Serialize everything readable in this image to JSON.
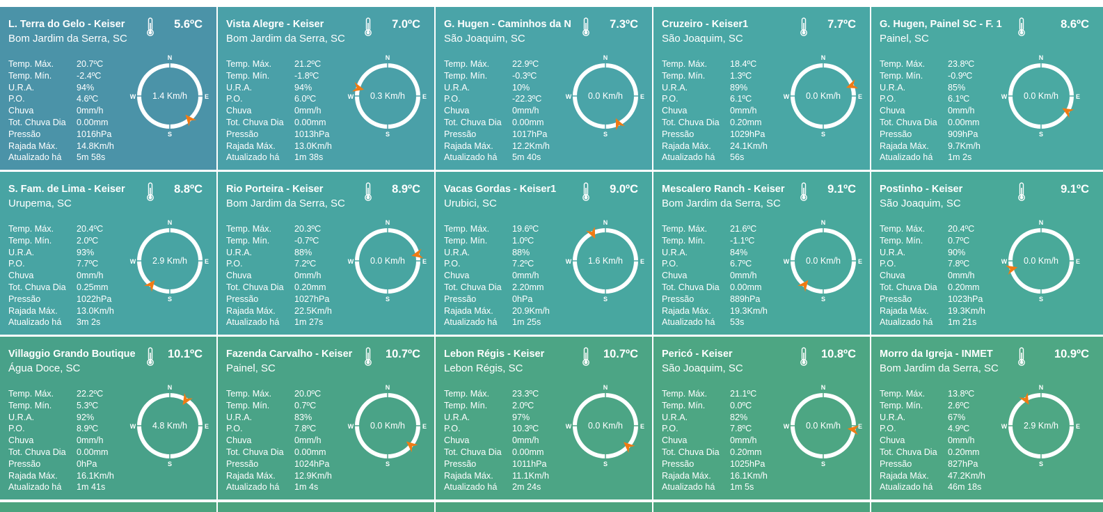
{
  "colors": {
    "rows": [
      [
        "#4b93a8",
        "#4aa0a8",
        "#4aa4a8",
        "#49a7a5",
        "#4aa9a2"
      ],
      [
        "#48a4a3",
        "#48a5a1",
        "#48a7a0",
        "#48a89c",
        "#49a999"
      ],
      [
        "#48a189",
        "#4aa387",
        "#4ca585",
        "#4da683",
        "#4ea784"
      ]
    ],
    "arrow": "#f07b14",
    "ring": "#ffffff"
  },
  "labels": {
    "temp_max": "Temp. Máx.",
    "temp_min": "Temp. Mín.",
    "ura": "U.R.A.",
    "po": "P.O.",
    "chuva": "Chuva",
    "tot_chuva": "Tot. Chuva Dia",
    "pressao": "Pressão",
    "rajada": "Rajada Máx.",
    "atualizado": "Atualizado há",
    "n": "N",
    "s": "S",
    "e": "E",
    "w": "W"
  },
  "stations": [
    {
      "name": "L. Terra do Gelo - Keiser",
      "location": "Bom Jardim da Serra, SC",
      "temp": "5.6ºC",
      "temp_max": "20.7ºC",
      "temp_min": "-2.4ºC",
      "ura": "94%",
      "po": "4.6ºC",
      "chuva": "0mm/h",
      "tot_chuva": "0.00mm",
      "pressao": "1016hPa",
      "rajada": "14.8Km/h",
      "atualizado": "5m 58s",
      "wind_speed": "1.4 Km/h",
      "wind_dir_deg": 140
    },
    {
      "name": "Vista Alegre - Keiser",
      "location": "Bom Jardim da Serra, SC",
      "temp": "7.0ºC",
      "temp_max": "21.2ºC",
      "temp_min": "-1.8ºC",
      "ura": "94%",
      "po": "6.0ºC",
      "chuva": "0mm/h",
      "tot_chuva": "0.00mm",
      "pressao": "1013hPa",
      "rajada": "13.0Km/h",
      "atualizado": "1m 38s",
      "wind_speed": "0.3 Km/h",
      "wind_dir_deg": 285
    },
    {
      "name": "G. Hugen - Caminhos da N",
      "location": "São Joaquim, SC",
      "temp": "7.3ºC",
      "temp_max": "22.9ºC",
      "temp_min": "-0.3ºC",
      "ura": "10%",
      "po": "-22.3ºC",
      "chuva": "0mm/h",
      "tot_chuva": "0.00mm",
      "pressao": "1017hPa",
      "rajada": "12.2Km/h",
      "atualizado": "5m 40s",
      "wind_speed": "0.0 Km/h",
      "wind_dir_deg": 155
    },
    {
      "name": "Cruzeiro - Keiser1",
      "location": "São Joaquim, SC",
      "temp": "7.7ºC",
      "temp_max": "18.4ºC",
      "temp_min": "1.3ºC",
      "ura": "89%",
      "po": "6.1ºC",
      "chuva": "0mm/h",
      "tot_chuva": "0.20mm",
      "pressao": "1029hPa",
      "rajada": "24.1Km/h",
      "atualizado": "56s",
      "wind_speed": "0.0 Km/h",
      "wind_dir_deg": 70
    },
    {
      "name": "G. Hugen, Painel SC - F. 1",
      "location": "Painel, SC",
      "temp": "8.6ºC",
      "temp_max": "23.8ºC",
      "temp_min": "-0.9ºC",
      "ura": "85%",
      "po": "6.1ºC",
      "chuva": "0mm/h",
      "tot_chuva": "0.00mm",
      "pressao": "909hPa",
      "rajada": "9.7Km/h",
      "atualizado": "1m 2s",
      "wind_speed": "0.0 Km/h",
      "wind_dir_deg": 120
    },
    {
      "name": "S. Fam. de Lima - Keiser",
      "location": "Urupema, SC",
      "temp": "8.8ºC",
      "temp_max": "20.4ºC",
      "temp_min": "2.0ºC",
      "ura": "93%",
      "po": "7.7ºC",
      "chuva": "0mm/h",
      "tot_chuva": "0.25mm",
      "pressao": "1022hPa",
      "rajada": "13.0Km/h",
      "atualizado": "3m 2s",
      "wind_speed": "2.9 Km/h",
      "wind_dir_deg": 218
    },
    {
      "name": "Rio Porteira - Keiser",
      "location": "Bom Jardim da Serra, SC",
      "temp": "8.9ºC",
      "temp_max": "20.3ºC",
      "temp_min": "-0.7ºC",
      "ura": "88%",
      "po": "7.2ºC",
      "chuva": "0mm/h",
      "tot_chuva": "0.20mm",
      "pressao": "1027hPa",
      "rajada": "22.5Km/h",
      "atualizado": "1m 27s",
      "wind_speed": "0.0 Km/h",
      "wind_dir_deg": 78
    },
    {
      "name": "Vacas Gordas - Keiser1",
      "location": "Urubici, SC",
      "temp": "9.0ºC",
      "temp_max": "19.6ºC",
      "temp_min": "1.0ºC",
      "ura": "88%",
      "po": "7.2ºC",
      "chuva": "0mm/h",
      "tot_chuva": "2.20mm",
      "pressao": "0hPa",
      "rajada": "20.9Km/h",
      "atualizado": "1m 25s",
      "wind_speed": "1.6 Km/h",
      "wind_dir_deg": 335
    },
    {
      "name": "Mescalero Ranch - Keiser",
      "location": "Bom Jardim da Serra, SC",
      "temp": "9.1ºC",
      "temp_max": "21.6ºC",
      "temp_min": "-1.1ºC",
      "ura": "84%",
      "po": "6.7ºC",
      "chuva": "0mm/h",
      "tot_chuva": "0.00mm",
      "pressao": "889hPa",
      "rajada": "19.3Km/h",
      "atualizado": "53s",
      "wind_speed": "0.0 Km/h",
      "wind_dir_deg": 218
    },
    {
      "name": "Postinho - Keiser",
      "location": "São Joaquim, SC",
      "temp": "9.1ºC",
      "temp_max": "20.4ºC",
      "temp_min": "0.7ºC",
      "ura": "90%",
      "po": "7.8ºC",
      "chuva": "0mm/h",
      "tot_chuva": "0.20mm",
      "pressao": "1023hPa",
      "rajada": "19.3Km/h",
      "atualizado": "1m 21s",
      "wind_speed": "0.0 Km/h",
      "wind_dir_deg": 255
    },
    {
      "name": "Villaggio Grando Boutique",
      "location": "Água Doce, SC",
      "temp": "10.1ºC",
      "temp_max": "22.2ºC",
      "temp_min": "5.3ºC",
      "ura": "92%",
      "po": "8.9ºC",
      "chuva": "0mm/h",
      "tot_chuva": "0.00mm",
      "pressao": "0hPa",
      "rajada": "16.1Km/h",
      "atualizado": "1m 41s",
      "wind_speed": "4.8 Km/h",
      "wind_dir_deg": 32
    },
    {
      "name": "Fazenda Carvalho - Keiser",
      "location": "Painel, SC",
      "temp": "10.7ºC",
      "temp_max": "20.0ºC",
      "temp_min": "0.7ºC",
      "ura": "83%",
      "po": "7.8ºC",
      "chuva": "0mm/h",
      "tot_chuva": "0.00mm",
      "pressao": "1024hPa",
      "rajada": "12.9Km/h",
      "atualizado": "1m 4s",
      "wind_speed": "0.0 Km/h",
      "wind_dir_deg": 130
    },
    {
      "name": "Lebon Régis - Keiser",
      "location": "Lebon Régis, SC",
      "temp": "10.7ºC",
      "temp_max": "23.3ºC",
      "temp_min": "2.0ºC",
      "ura": "97%",
      "po": "10.3ºC",
      "chuva": "0mm/h",
      "tot_chuva": "0.00mm",
      "pressao": "1011hPa",
      "rajada": "11.1Km/h",
      "atualizado": "2m 24s",
      "wind_speed": "0.0 Km/h",
      "wind_dir_deg": 132
    },
    {
      "name": "Pericó - Keiser",
      "location": "São Joaquim, SC",
      "temp": "10.8ºC",
      "temp_max": "21.1ºC",
      "temp_min": "0.0ºC",
      "ura": "82%",
      "po": "7.8ºC",
      "chuva": "0mm/h",
      "tot_chuva": "0.20mm",
      "pressao": "1025hPa",
      "rajada": "16.1Km/h",
      "atualizado": "1m 5s",
      "wind_speed": "0.0 Km/h",
      "wind_dir_deg": 97
    },
    {
      "name": "Morro da Igreja - INMET",
      "location": "Bom Jardim da Serra, SC",
      "temp": "10.9ºC",
      "temp_max": "13.8ºC",
      "temp_min": "2.6ºC",
      "ura": "67%",
      "po": "4.9ºC",
      "chuva": "0mm/h",
      "tot_chuva": "0.20mm",
      "pressao": "827hPa",
      "rajada": "47.2Km/h",
      "atualizado": "46m 18s",
      "wind_speed": "2.9 Km/h",
      "wind_dir_deg": 330
    }
  ]
}
